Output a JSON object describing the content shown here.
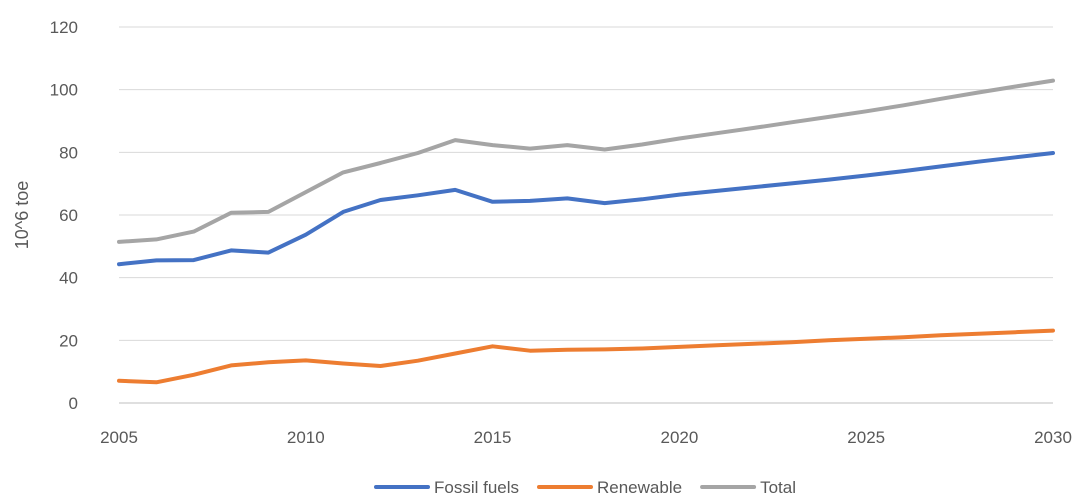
{
  "chart_data": {
    "type": "line",
    "title": "",
    "xlabel": "",
    "ylabel": "10^6 toe",
    "xlim": [
      2005,
      2030
    ],
    "ylim": [
      0,
      120
    ],
    "xticks": [
      2005,
      2010,
      2015,
      2020,
      2025,
      2030
    ],
    "yticks": [
      0,
      20,
      40,
      60,
      80,
      100,
      120
    ],
    "grid": "horizontal",
    "legend": "bottom",
    "x": [
      2005,
      2006,
      2007,
      2008,
      2009,
      2010,
      2011,
      2012,
      2013,
      2014,
      2015,
      2016,
      2017,
      2018,
      2019,
      2020,
      2021,
      2022,
      2023,
      2024,
      2025,
      2026,
      2027,
      2028,
      2029,
      2030
    ],
    "series": [
      {
        "name": "Fossil fuels",
        "color": "#4472c4",
        "values": [
          44.3,
          45.5,
          45.6,
          48.7,
          48.0,
          53.7,
          61.0,
          64.8,
          66.3,
          68.0,
          64.2,
          64.5,
          65.3,
          63.8,
          65.0,
          66.5,
          67.7,
          68.9,
          70.1,
          71.3,
          72.6,
          74.0,
          75.5,
          77.0,
          78.4,
          79.8
        ]
      },
      {
        "name": "Renewable",
        "color": "#ed7d31",
        "values": [
          7.1,
          6.6,
          9.0,
          12.0,
          13.0,
          13.6,
          12.6,
          11.8,
          13.5,
          15.8,
          18.1,
          16.7,
          17.0,
          17.1,
          17.4,
          17.9,
          18.4,
          18.9,
          19.4,
          20.0,
          20.5,
          21.0,
          21.6,
          22.1,
          22.6,
          23.1
        ]
      },
      {
        "name": "Total",
        "color": "#a5a5a5",
        "values": [
          51.4,
          52.2,
          54.7,
          60.7,
          61.0,
          67.3,
          73.6,
          76.6,
          79.8,
          83.9,
          82.3,
          81.2,
          82.3,
          80.9,
          82.5,
          84.4,
          86.1,
          87.8,
          89.6,
          91.3,
          93.1,
          95.0,
          97.1,
          99.1,
          101.0,
          102.9
        ]
      }
    ]
  }
}
